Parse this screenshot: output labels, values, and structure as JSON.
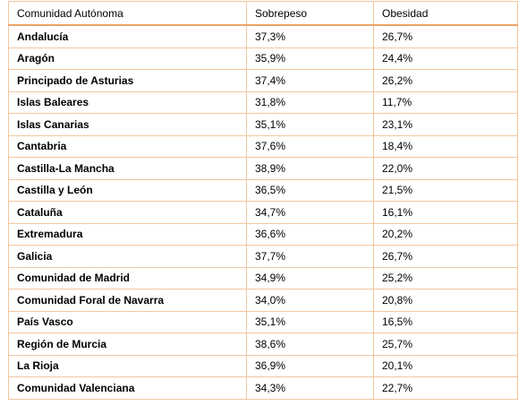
{
  "table": {
    "headers": [
      "Comunidad Autónoma",
      "Sobrepeso",
      "Obesidad"
    ],
    "rows": [
      [
        "Andalucía",
        "37,3%",
        "26,7%"
      ],
      [
        "Aragón",
        "35,9%",
        "24,4%"
      ],
      [
        "Principado de Asturias",
        "37,4%",
        "26,2%"
      ],
      [
        "Islas Baleares",
        "31,8%",
        "11,7%"
      ],
      [
        "Islas Canarias",
        "35,1%",
        "23,1%"
      ],
      [
        "Cantabria",
        "37,6%",
        "18,4%"
      ],
      [
        "Castilla-La Mancha",
        "38,9%",
        "22,0%"
      ],
      [
        "Castilla y León",
        "36,5%",
        "21,5%"
      ],
      [
        "Cataluña",
        "34,7%",
        "16,1%"
      ],
      [
        "Extremadura",
        "36,6%",
        "20,2%"
      ],
      [
        "Galicia",
        "37,7%",
        "26,7%"
      ],
      [
        "Comunidad de Madrid",
        "34,9%",
        "25,2%"
      ],
      [
        "Comunidad Foral de Navarra",
        "34,0%",
        "20,8%"
      ],
      [
        "País Vasco",
        "35,1%",
        "16,5%"
      ],
      [
        "Región de Murcia",
        "38,6%",
        "25,7%"
      ],
      [
        "La Rioja",
        "36,9%",
        "20,1%"
      ],
      [
        "Comunidad Valenciana",
        "34,3%",
        "22,7%"
      ]
    ]
  },
  "colors": {
    "border": "#f2c7a0",
    "header_rule": "#e8a36a"
  }
}
